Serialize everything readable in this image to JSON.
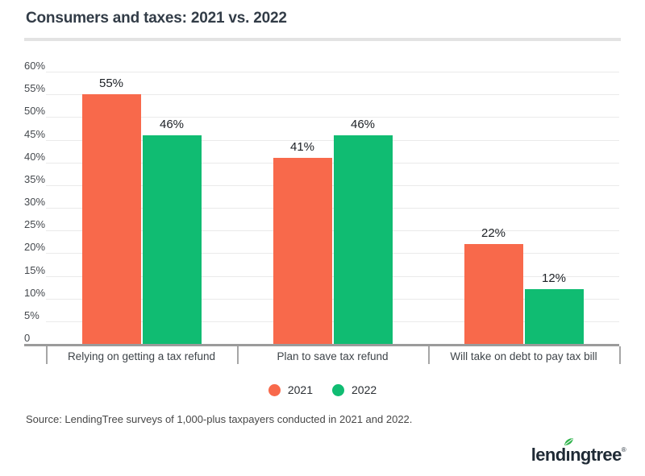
{
  "title": "Consumers and taxes: 2021 vs. 2022",
  "chart_data": {
    "type": "bar",
    "title": "Consumers and taxes: 2021 vs. 2022",
    "categories": [
      "Relying on getting a tax refund",
      "Plan to save tax refund",
      "Will take on debt to pay tax bill"
    ],
    "series": [
      {
        "name": "2021",
        "color": "#F8694B",
        "values": [
          55,
          41,
          22
        ]
      },
      {
        "name": "2022",
        "color": "#10BC72",
        "values": [
          46,
          46,
          12
        ]
      }
    ],
    "value_suffix": "%",
    "ylim": [
      0,
      60
    ],
    "ytick_step": 5,
    "ytick_labels": [
      "60%",
      "55%",
      "50%",
      "45%",
      "40%",
      "35%",
      "30%",
      "25%",
      "20%",
      "15%",
      "10%",
      "5%",
      "0"
    ],
    "grid": true,
    "legend_position": "bottom"
  },
  "legend": {
    "items": [
      {
        "label": "2021",
        "color": "#F8694B"
      },
      {
        "label": "2022",
        "color": "#10BC72"
      }
    ]
  },
  "source": "Source: LendingTree surveys of 1,000-plus taxpayers conducted in 2021 and 2022.",
  "logo": {
    "part1": "lend",
    "part2": "ı",
    "part3": "ngtree",
    "registered": "®",
    "icon": "leaf-icon"
  },
  "colors": {
    "bar_2021": "#F8694B",
    "bar_2022": "#10BC72",
    "gridline": "#EAEAEA",
    "axis": "#9B9B9B",
    "title": "#323C47",
    "axis_text": "#3E4449",
    "value_label": "#1B1F24",
    "source_text": "#474747",
    "divider": "#E3E3E3",
    "logo_navy": "#1F2A35",
    "leaf_green": "#2FB34B"
  }
}
